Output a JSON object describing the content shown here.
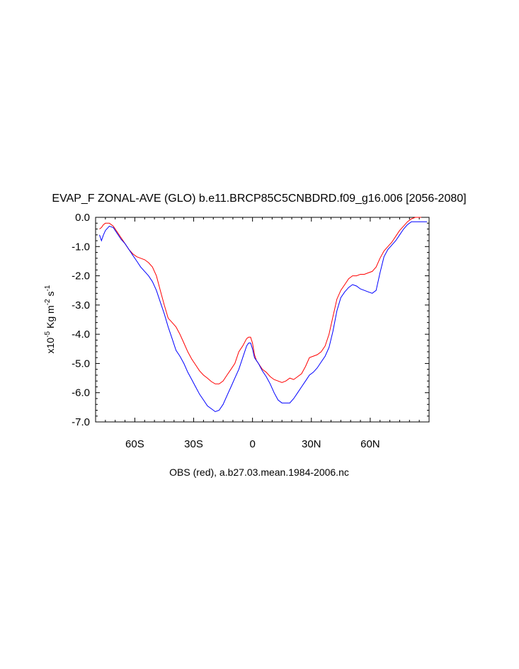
{
  "chart_data": {
    "type": "line",
    "title": "EVAP_F ZONAL-AVE (GLO) b.e11.BRCP85C5CNBDRD.f09_g16.006 [2056-2080]",
    "ylabel_prefix": "x10",
    "ylabel_exp": "-5",
    "ylabel_units_a": " Kg m",
    "ylabel_units_exp_a": "-2",
    "ylabel_units_b": " s",
    "ylabel_units_exp_b": "-1",
    "footer": "OBS (red), a.b27.03.mean.1984-2006.nc",
    "xlim": [
      -80,
      90
    ],
    "ylim": [
      -7.0,
      0.0
    ],
    "x_ticks": [
      {
        "value": -60,
        "label": "60S"
      },
      {
        "value": -30,
        "label": "30S"
      },
      {
        "value": 0,
        "label": "0"
      },
      {
        "value": 30,
        "label": "30N"
      },
      {
        "value": 60,
        "label": "60N"
      }
    ],
    "y_ticks": [
      {
        "value": 0.0,
        "label": "0.0"
      },
      {
        "value": -1.0,
        "label": "-1.0"
      },
      {
        "value": -2.0,
        "label": "-2.0"
      },
      {
        "value": -3.0,
        "label": "-3.0"
      },
      {
        "value": -4.0,
        "label": "-4.0"
      },
      {
        "value": -5.0,
        "label": "-5.0"
      },
      {
        "value": -6.0,
        "label": "-6.0"
      },
      {
        "value": -7.0,
        "label": "-7.0"
      }
    ],
    "series": [
      {
        "name": "",
        "color": "#ff0000",
        "points": [
          [
            -78,
            -0.4
          ],
          [
            -77,
            -0.35
          ],
          [
            -76,
            -0.25
          ],
          [
            -75,
            -0.2
          ],
          [
            -73,
            -0.2
          ],
          [
            -71,
            -0.3
          ],
          [
            -69,
            -0.5
          ],
          [
            -67,
            -0.7
          ],
          [
            -65,
            -0.9
          ],
          [
            -63,
            -1.1
          ],
          [
            -61,
            -1.25
          ],
          [
            -59,
            -1.35
          ],
          [
            -57,
            -1.4
          ],
          [
            -55,
            -1.45
          ],
          [
            -53,
            -1.55
          ],
          [
            -51,
            -1.7
          ],
          [
            -49,
            -2.0
          ],
          [
            -47,
            -2.5
          ],
          [
            -45,
            -3.0
          ],
          [
            -43,
            -3.45
          ],
          [
            -41,
            -3.6
          ],
          [
            -39,
            -3.75
          ],
          [
            -37,
            -4.0
          ],
          [
            -35,
            -4.3
          ],
          [
            -33,
            -4.6
          ],
          [
            -31,
            -4.85
          ],
          [
            -29,
            -5.05
          ],
          [
            -27,
            -5.25
          ],
          [
            -25,
            -5.4
          ],
          [
            -23,
            -5.5
          ],
          [
            -21,
            -5.62
          ],
          [
            -19,
            -5.7
          ],
          [
            -17,
            -5.7
          ],
          [
            -15,
            -5.6
          ],
          [
            -13,
            -5.4
          ],
          [
            -11,
            -5.2
          ],
          [
            -9,
            -5.0
          ],
          [
            -7,
            -4.6
          ],
          [
            -5,
            -4.4
          ],
          [
            -3,
            -4.15
          ],
          [
            -2,
            -4.1
          ],
          [
            -1,
            -4.1
          ],
          [
            0,
            -4.3
          ],
          [
            1,
            -4.7
          ],
          [
            2,
            -4.9
          ],
          [
            3,
            -5.0
          ],
          [
            5,
            -5.2
          ],
          [
            7,
            -5.3
          ],
          [
            9,
            -5.45
          ],
          [
            11,
            -5.55
          ],
          [
            13,
            -5.6
          ],
          [
            15,
            -5.65
          ],
          [
            17,
            -5.6
          ],
          [
            19,
            -5.5
          ],
          [
            21,
            -5.55
          ],
          [
            23,
            -5.45
          ],
          [
            25,
            -5.35
          ],
          [
            27,
            -5.1
          ],
          [
            29,
            -4.8
          ],
          [
            31,
            -4.75
          ],
          [
            33,
            -4.7
          ],
          [
            35,
            -4.6
          ],
          [
            37,
            -4.4
          ],
          [
            39,
            -4.0
          ],
          [
            41,
            -3.4
          ],
          [
            43,
            -2.8
          ],
          [
            45,
            -2.5
          ],
          [
            47,
            -2.3
          ],
          [
            49,
            -2.1
          ],
          [
            51,
            -2.0
          ],
          [
            53,
            -2.0
          ],
          [
            55,
            -1.95
          ],
          [
            57,
            -1.95
          ],
          [
            59,
            -1.9
          ],
          [
            61,
            -1.85
          ],
          [
            63,
            -1.7
          ],
          [
            65,
            -1.4
          ],
          [
            67,
            -1.15
          ],
          [
            69,
            -1.0
          ],
          [
            71,
            -0.85
          ],
          [
            73,
            -0.65
          ],
          [
            75,
            -0.45
          ],
          [
            77,
            -0.3
          ],
          [
            79,
            -0.15
          ],
          [
            81,
            -0.05
          ],
          [
            83,
            0.0
          ],
          [
            86,
            0.0
          ]
        ]
      },
      {
        "name": "",
        "color": "#0000ff",
        "points": [
          [
            -78,
            -0.6
          ],
          [
            -77,
            -0.8
          ],
          [
            -76,
            -0.6
          ],
          [
            -75,
            -0.45
          ],
          [
            -73,
            -0.3
          ],
          [
            -71,
            -0.35
          ],
          [
            -69,
            -0.55
          ],
          [
            -67,
            -0.75
          ],
          [
            -65,
            -0.9
          ],
          [
            -63,
            -1.1
          ],
          [
            -61,
            -1.3
          ],
          [
            -59,
            -1.5
          ],
          [
            -57,
            -1.7
          ],
          [
            -55,
            -1.85
          ],
          [
            -53,
            -2.0
          ],
          [
            -51,
            -2.2
          ],
          [
            -49,
            -2.5
          ],
          [
            -47,
            -2.9
          ],
          [
            -45,
            -3.3
          ],
          [
            -43,
            -3.75
          ],
          [
            -41,
            -4.15
          ],
          [
            -39,
            -4.55
          ],
          [
            -37,
            -4.75
          ],
          [
            -35,
            -5.0
          ],
          [
            -33,
            -5.3
          ],
          [
            -31,
            -5.55
          ],
          [
            -29,
            -5.8
          ],
          [
            -27,
            -6.05
          ],
          [
            -25,
            -6.25
          ],
          [
            -23,
            -6.45
          ],
          [
            -21,
            -6.55
          ],
          [
            -19,
            -6.65
          ],
          [
            -17,
            -6.6
          ],
          [
            -15,
            -6.4
          ],
          [
            -13,
            -6.1
          ],
          [
            -11,
            -5.8
          ],
          [
            -9,
            -5.5
          ],
          [
            -7,
            -5.2
          ],
          [
            -5,
            -4.8
          ],
          [
            -3,
            -4.4
          ],
          [
            -2,
            -4.3
          ],
          [
            -1,
            -4.3
          ],
          [
            0,
            -4.5
          ],
          [
            1,
            -4.8
          ],
          [
            3,
            -5.0
          ],
          [
            5,
            -5.25
          ],
          [
            7,
            -5.45
          ],
          [
            9,
            -5.7
          ],
          [
            11,
            -6.0
          ],
          [
            13,
            -6.25
          ],
          [
            15,
            -6.35
          ],
          [
            17,
            -6.35
          ],
          [
            19,
            -6.35
          ],
          [
            21,
            -6.2
          ],
          [
            23,
            -6.0
          ],
          [
            25,
            -5.8
          ],
          [
            27,
            -5.6
          ],
          [
            29,
            -5.4
          ],
          [
            31,
            -5.3
          ],
          [
            33,
            -5.15
          ],
          [
            35,
            -4.95
          ],
          [
            37,
            -4.75
          ],
          [
            39,
            -4.45
          ],
          [
            41,
            -3.9
          ],
          [
            43,
            -3.2
          ],
          [
            45,
            -2.75
          ],
          [
            47,
            -2.55
          ],
          [
            49,
            -2.4
          ],
          [
            51,
            -2.3
          ],
          [
            53,
            -2.35
          ],
          [
            55,
            -2.45
          ],
          [
            57,
            -2.5
          ],
          [
            59,
            -2.55
          ],
          [
            61,
            -2.6
          ],
          [
            63,
            -2.5
          ],
          [
            65,
            -1.9
          ],
          [
            67,
            -1.35
          ],
          [
            69,
            -1.1
          ],
          [
            71,
            -0.95
          ],
          [
            73,
            -0.8
          ],
          [
            75,
            -0.6
          ],
          [
            77,
            -0.4
          ],
          [
            79,
            -0.25
          ],
          [
            81,
            -0.15
          ],
          [
            83,
            -0.15
          ],
          [
            86,
            -0.15
          ],
          [
            89,
            -0.15
          ]
        ]
      }
    ]
  }
}
